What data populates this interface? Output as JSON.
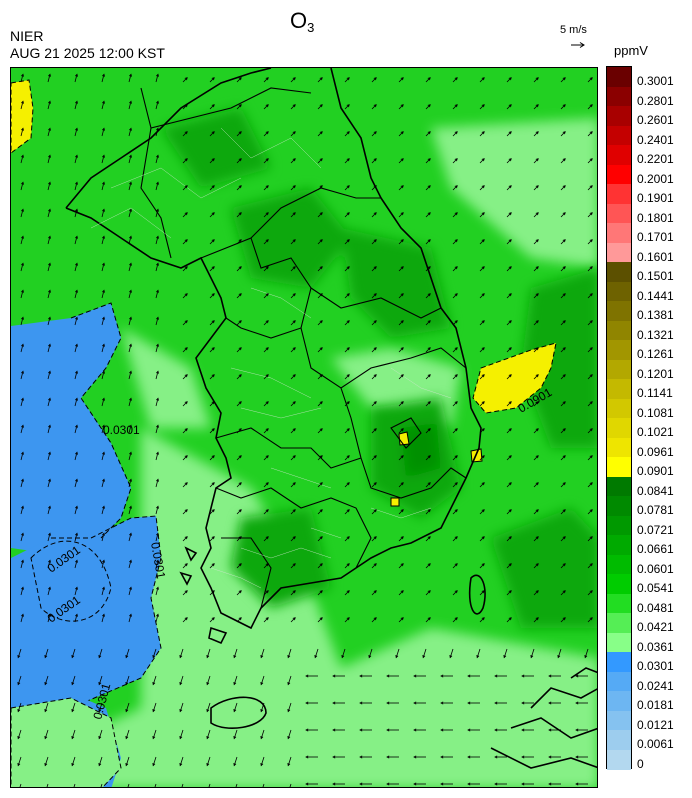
{
  "header": {
    "title_main": "O",
    "title_sub": "3",
    "agency": "NIER",
    "datetime": "AUG 21 2025 12:00 KST",
    "wind_scale_label": "5 m/s",
    "unit": "ppmV"
  },
  "legend": {
    "labels": [
      "0.3001",
      "0.2801",
      "0.2601",
      "0.2401",
      "0.2201",
      "0.2001",
      "0.1901",
      "0.1801",
      "0.1701",
      "0.1601",
      "0.1501",
      "0.1441",
      "0.1381",
      "0.1321",
      "0.1261",
      "0.1201",
      "0.1141",
      "0.1081",
      "0.1021",
      "0.0961",
      "0.0901",
      "0.0841",
      "0.0781",
      "0.0721",
      "0.0661",
      "0.0601",
      "0.0541",
      "0.0481",
      "0.0421",
      "0.0361",
      "0.0301",
      "0.0241",
      "0.0181",
      "0.0121",
      "0.0061",
      "0"
    ],
    "colors": [
      "#6a0000",
      "#8b0000",
      "#a80000",
      "#c40000",
      "#e00000",
      "#ff0000",
      "#ff3333",
      "#ff5555",
      "#ff7777",
      "#ff9999",
      "#5c5000",
      "#6e6200",
      "#7f7300",
      "#908500",
      "#a29600",
      "#b3a800",
      "#c4b900",
      "#d2c800",
      "#e0d700",
      "#eee500",
      "#ffff00",
      "#007a00",
      "#008a00",
      "#009900",
      "#00aa00",
      "#00bb00",
      "#00cc00",
      "#22dd22",
      "#55ee55",
      "#88ff88",
      "#3399ff",
      "#55aaf5",
      "#6db6f2",
      "#85c2f0",
      "#9dcdee",
      "#b3d8ef"
    ]
  },
  "map": {
    "contour_labels": [
      "0.0301",
      "0.0301",
      "0.0301",
      "0.0301",
      "0.0301",
      "0.0901"
    ],
    "colors": {
      "sea_blue": "#3d96f0",
      "light_green": "#86f086",
      "mid_green": "#22d022",
      "dark_green": "#0aa80a",
      "darker_green": "#059005",
      "yellow": "#f5f000"
    }
  }
}
